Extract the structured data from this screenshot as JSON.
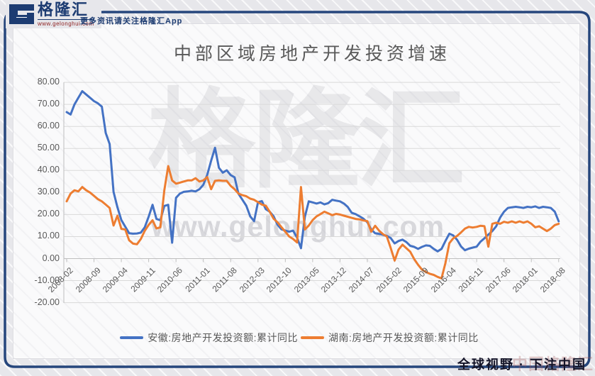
{
  "header": {
    "logo_text": "格隆汇",
    "logo_url": "www.gelonghui.com",
    "tagline": "更多资讯请关注格隆汇App"
  },
  "watermark": {
    "main": "格隆汇",
    "sub": "www.gelonghui.com"
  },
  "footer": {
    "slogan": "全球视野 · 下注中国",
    "stamp": "中国格隆汇"
  },
  "colors": {
    "anhui_line": "#4472c4",
    "hunan_line": "#ed7d31",
    "frame": "#26467c",
    "grid": "#d9d9d9",
    "axis": "#bfbfbf"
  },
  "chart_data": {
    "type": "line",
    "title": "中部区域房地产开发投资增速",
    "x_start": "2008-02",
    "x_end": "2018-08",
    "frequency": "monthly",
    "x_tick_labels": [
      "2008-02",
      "2008-09",
      "2009-04",
      "2009-11",
      "2010-06",
      "2011-01",
      "2011-08",
      "2012-03",
      "2012-10",
      "2013-05",
      "2013-12",
      "2014-07",
      "2015-02",
      "2015-09",
      "2016-04",
      "2016-11",
      "2017-06",
      "2018-01",
      "2018-08"
    ],
    "y_tick_labels": [
      "80.00",
      "70.00",
      "60.00",
      "50.00",
      "40.00",
      "30.00",
      "20.00",
      "10.00",
      "0.00",
      "-10.00",
      "-20.00"
    ],
    "ylim": [
      -20,
      80
    ],
    "grid": true,
    "legend_position": "bottom",
    "series": [
      {
        "name": "安徽:房地产开发投资额:累计同比",
        "color": "#4472c4",
        "values": [
          66.5,
          65.4,
          70,
          73,
          76,
          74.5,
          73,
          71.5,
          70.5,
          69,
          57,
          52,
          30.3,
          23.3,
          17.5,
          14.5,
          11.5,
          11.3,
          11.4,
          11.8,
          14.2,
          19,
          24.4,
          18,
          17.4,
          23.9,
          24.4,
          7.2,
          27.6,
          29.5,
          30.3,
          30.5,
          30.8,
          30.5,
          31.5,
          33.5,
          38,
          44.4,
          50.3,
          41.2,
          39,
          40.1,
          37.9,
          36.9,
          29.4,
          26.7,
          24,
          19.2,
          17,
          25.6,
          26.1,
          22.4,
          21.3,
          19.2,
          15.4,
          13.3,
          12.7,
          12.2,
          12.7,
          9.5,
          4.7,
          19,
          26,
          25.5,
          25,
          25.5,
          24.6,
          25.2,
          26.7,
          26.3,
          26,
          25,
          23.4,
          20.8,
          20.2,
          19.2,
          18.1,
          16.5,
          13.2,
          11.5,
          11.2,
          10.8,
          10.3,
          9.3,
          6.9,
          8,
          8.6,
          7.5,
          5.8,
          5.3,
          4.4,
          5.3,
          6,
          5.8,
          4.4,
          3.3,
          4.4,
          8,
          11.3,
          10.5,
          8.5,
          5.5,
          3.8,
          4.5,
          5,
          5.4,
          7.7,
          9.2,
          10.9,
          12.5,
          14.7,
          18.6,
          21.3,
          23,
          23.3,
          23.5,
          23.3,
          23,
          23.5,
          23.3,
          23.7,
          23,
          23.5,
          23.3,
          23,
          21.3,
          16.9
        ]
      },
      {
        "name": "湖南:房地产开发投资额:累计同比",
        "color": "#ed7d31",
        "values": [
          26,
          29.5,
          31,
          30.5,
          32.5,
          31,
          30,
          28.5,
          27,
          26,
          24.5,
          23,
          15,
          19.5,
          13.5,
          13.2,
          8.3,
          6.8,
          6.5,
          8.9,
          12.6,
          15.3,
          17.4,
          13.7,
          14.2,
          31,
          42,
          35.5,
          34,
          34.5,
          35,
          35.5,
          35.5,
          36.5,
          35,
          35.5,
          37,
          31.5,
          35.3,
          35.5,
          35.3,
          35.3,
          33,
          31.5,
          29.5,
          28.8,
          28.3,
          27.2,
          26.7,
          25.6,
          24.5,
          24,
          21.3,
          18.1,
          16.5,
          14.3,
          12.2,
          10,
          8.9,
          7.3,
          32.5,
          13.2,
          15,
          17.5,
          19.2,
          20.2,
          21.3,
          20.5,
          19.7,
          20.3,
          20,
          19.5,
          19,
          18.5,
          18,
          17.8,
          17.3,
          17,
          12.2,
          14.9,
          12.7,
          11.1,
          10,
          4.7,
          -0.9,
          4.1,
          6.3,
          4.7,
          3.1,
          -0.2,
          -2.8,
          -5,
          -6.1,
          -6.9,
          -7.4,
          -8.3,
          -9,
          -2,
          7,
          9.2,
          10.3,
          11.9,
          13.6,
          14.4,
          14.1,
          14.4,
          14.9,
          14.7,
          5.4,
          15.8,
          16.3,
          15.8,
          16.7,
          16.3,
          16.9,
          16.3,
          16.9,
          16.3,
          16.9,
          15.8,
          14.2,
          14.7,
          13.6,
          12.5,
          13.6,
          15.2,
          15.8
        ]
      }
    ]
  }
}
